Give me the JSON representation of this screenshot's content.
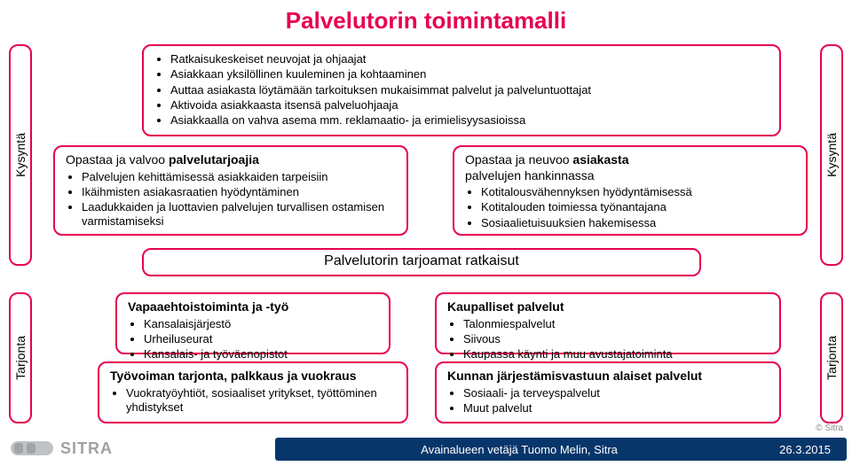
{
  "title": "Palvelutorin toimintamalli",
  "colors": {
    "accent": "#e60050",
    "footer_bg": "#07366b",
    "text": "#000000"
  },
  "side_tabs": {
    "top_left": "Kysyntä",
    "top_right": "Kysyntä",
    "bot_left": "Tarjonta",
    "bot_right": "Tarjonta"
  },
  "top_big": {
    "items": [
      "Ratkaisukeskeiset neuvojat ja ohjaajat",
      "Asiakkaan yksilöllinen kuuleminen ja kohtaaminen",
      "Auttaa asiakasta löytämään tarkoituksen mukaisimmat palvelut ja palveluntuottajat",
      "Aktivoida asiakkaasta itsensä palveluohjaaja",
      "Asiakkaalla on vahva asema mm. reklamaatio- ja erimielisyysasioissa"
    ]
  },
  "mid_left": {
    "header_plain1": "Opastaa ja valvoo ",
    "header_bold": "palvelutarjoajia",
    "items": [
      "Palvelujen kehittämisessä asiakkaiden tarpeisiin",
      "Ikäihmisten asiakasraatien hyödyntäminen",
      "Laadukkaiden ja luottavien palvelujen turvallisen ostamisen varmistamiseksi"
    ]
  },
  "mid_right": {
    "header_plain1": "Opastaa ja neuvoo ",
    "header_bold": "asiakasta",
    "header_plain2": "palvelujen hankinnassa",
    "items": [
      "Kotitalousvähennyksen hyödyntämisessä",
      "Kotitalouden toimiessa työnantajana",
      "Sosiaalietuisuuksien hakemisessa"
    ]
  },
  "band": "Palvelutorin tarjoamat ratkaisut",
  "b1": {
    "header": "Vapaaehtoistoiminta ja -työ",
    "items": [
      "Kansalaisjärjestö",
      "Urheiluseurat",
      "Kansalais- ja työväenopistot"
    ]
  },
  "b2": {
    "header": "Kaupalliset palvelut",
    "items": [
      "Talonmiespalvelut",
      "Siivous",
      "Kaupassa käynti ja muu avustajatoiminta"
    ]
  },
  "b3": {
    "header": "Työvoiman tarjonta, palkkaus ja vuokraus",
    "items": [
      "Vuokratyöyhtiöt, sosiaaliset yritykset, työttöminen yhdistykset"
    ]
  },
  "b4": {
    "header": "Kunnan järjestämisvastuun alaiset palvelut",
    "items": [
      "Sosiaali- ja terveyspalvelut",
      "Muut palvelut"
    ]
  },
  "footer": {
    "text": "Avainalueen vetäjä Tuomo Melin, Sitra",
    "date": "26.3.2015",
    "brand": "SITRA",
    "copyright": "© Sitra"
  }
}
